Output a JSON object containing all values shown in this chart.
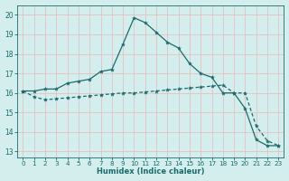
{
  "xlabel": "Humidex (Indice chaleur)",
  "bg_color": "#d4eeee",
  "grid_color": "#b8d8d8",
  "line_color": "#1a6b6b",
  "xlim": [
    -0.5,
    23.5
  ],
  "ylim": [
    12.7,
    20.5
  ],
  "xticks": [
    0,
    1,
    2,
    3,
    4,
    5,
    6,
    7,
    8,
    9,
    10,
    11,
    12,
    13,
    14,
    15,
    16,
    17,
    18,
    19,
    20,
    21,
    22,
    23
  ],
  "yticks": [
    13,
    14,
    15,
    16,
    17,
    18,
    19,
    20
  ],
  "curve1_x": [
    0,
    1,
    2,
    3,
    4,
    5,
    6,
    7,
    8,
    9,
    10,
    11,
    12,
    13,
    14,
    15,
    16,
    17,
    18,
    19,
    20,
    21,
    22,
    23
  ],
  "curve1_y": [
    16.1,
    16.1,
    16.2,
    16.2,
    16.5,
    16.6,
    16.7,
    17.1,
    17.2,
    18.5,
    19.85,
    19.6,
    19.1,
    18.6,
    18.3,
    17.5,
    17.0,
    16.8,
    16.0,
    16.0,
    15.2,
    13.6,
    13.3,
    13.3
  ],
  "curve2_x": [
    0,
    1,
    2,
    3,
    4,
    5,
    6,
    7,
    8,
    9,
    10,
    11,
    12,
    13,
    14,
    15,
    16,
    17,
    18,
    19,
    20,
    21,
    22,
    23
  ],
  "curve2_y": [
    16.1,
    15.8,
    15.65,
    15.7,
    15.75,
    15.8,
    15.85,
    15.9,
    15.95,
    16.0,
    16.0,
    16.05,
    16.1,
    16.15,
    16.2,
    16.25,
    16.3,
    16.35,
    16.4,
    16.0,
    16.0,
    14.3,
    13.55,
    13.3
  ]
}
